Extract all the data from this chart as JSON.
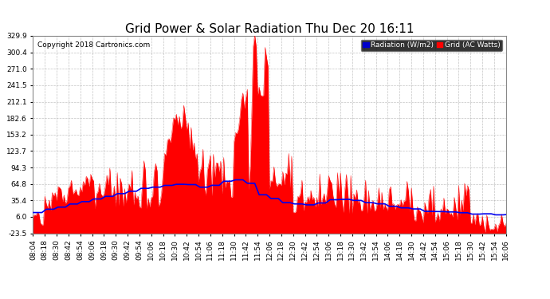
{
  "title": "Grid Power & Solar Radiation Thu Dec 20 16:11",
  "copyright": "Copyright 2018 Cartronics.com",
  "legend_radiation": "Radiation (W/m2)",
  "legend_grid": "Grid (AC Watts)",
  "ylim": [
    -23.5,
    329.9
  ],
  "yticks": [
    -23.5,
    6.0,
    35.4,
    64.8,
    94.3,
    123.7,
    153.2,
    182.6,
    212.1,
    241.5,
    271.0,
    300.4,
    329.9
  ],
  "background_color": "#ffffff",
  "plot_bg_color": "#ffffff",
  "grid_color": "#aaaaaa",
  "radiation_color": "#0000ee",
  "grid_ac_color": "#ff0000",
  "title_fontsize": 11,
  "tick_fontsize": 6.5
}
